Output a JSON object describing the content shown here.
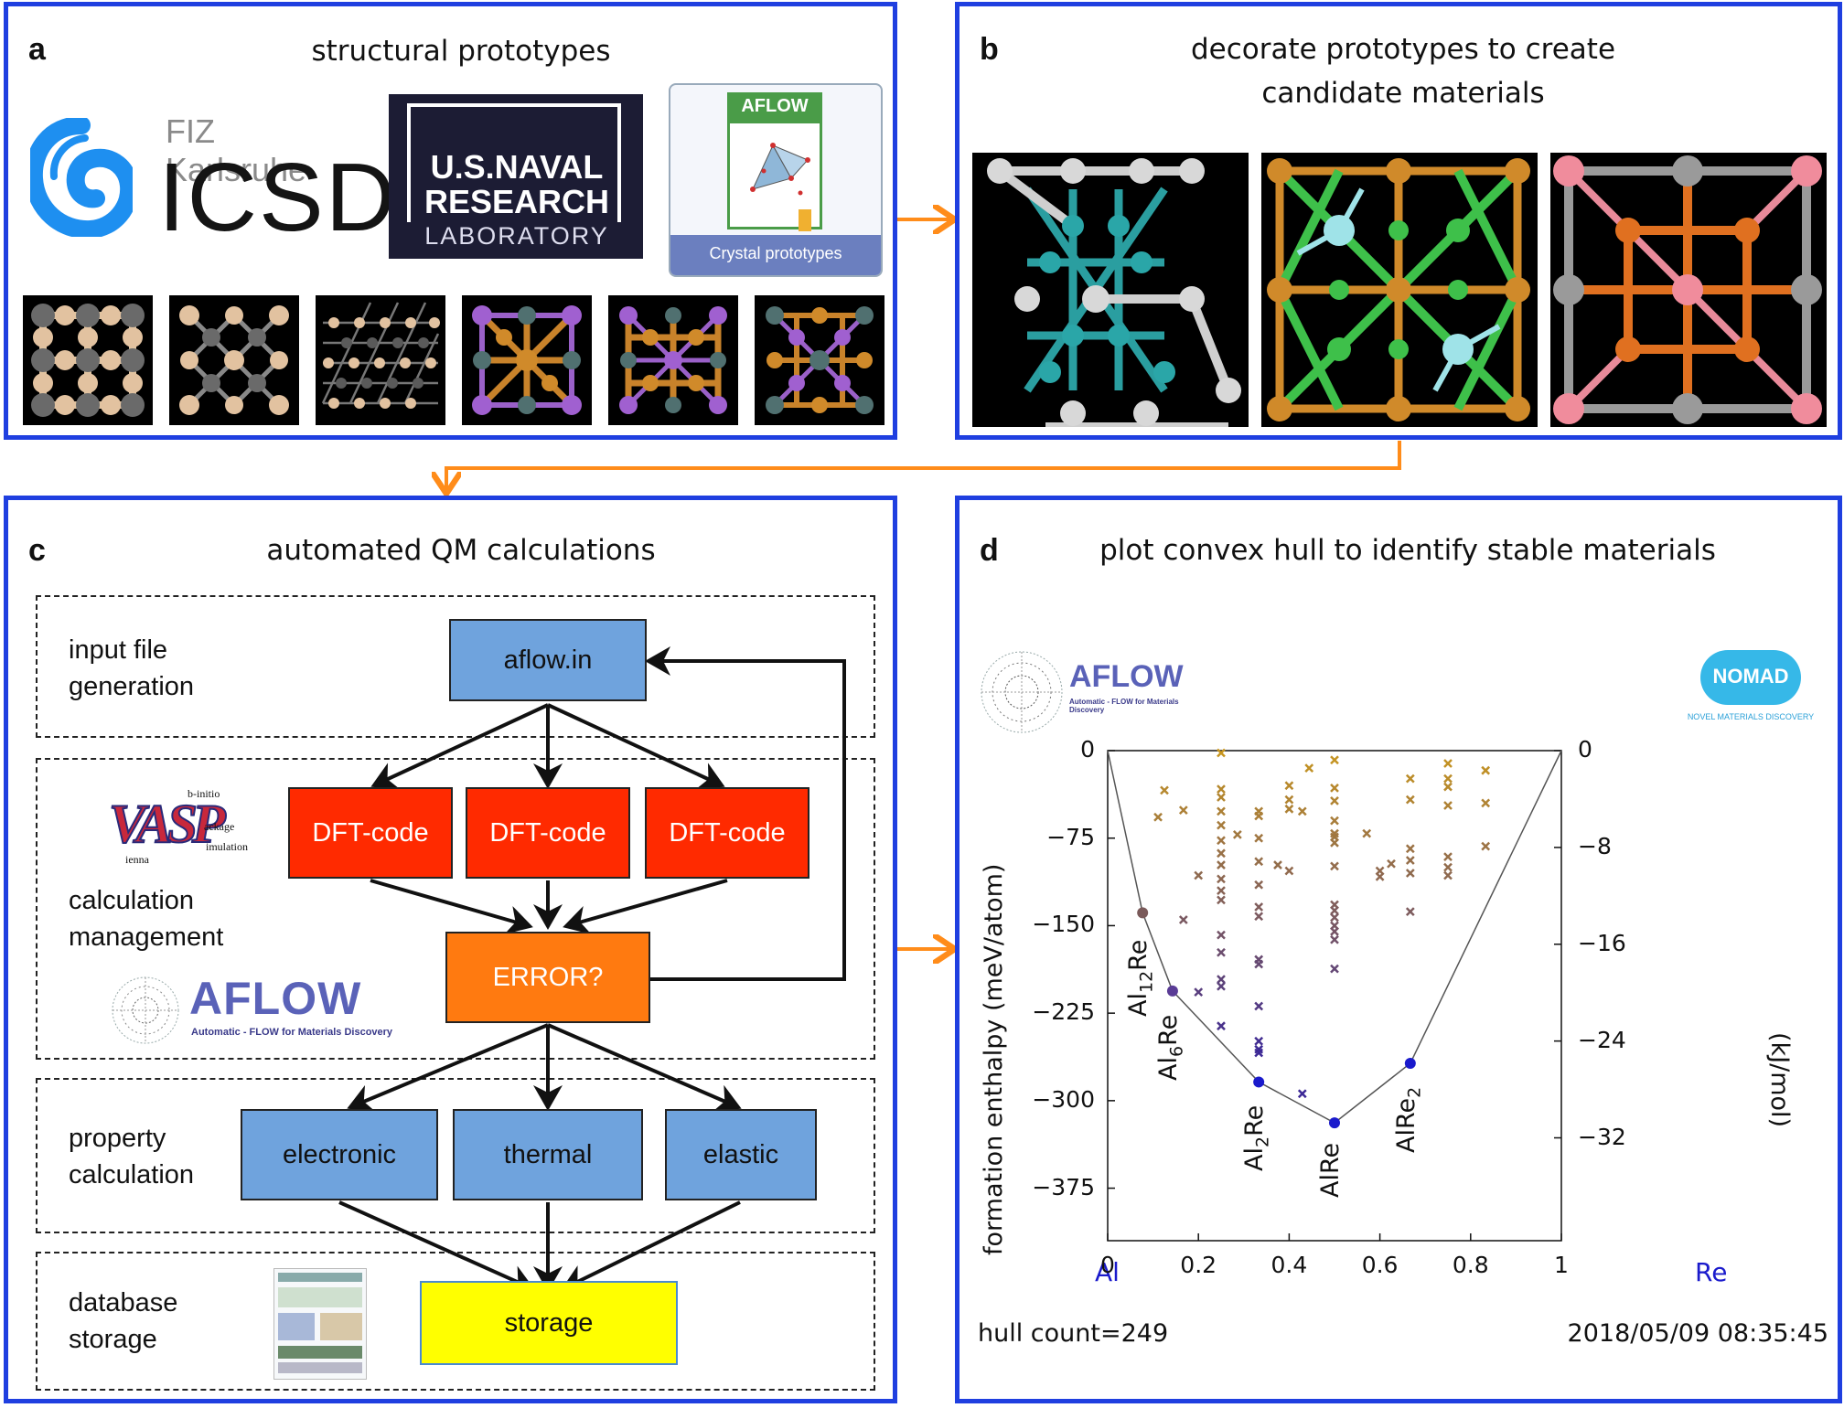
{
  "panel_a": {
    "letter": "a",
    "title": "structural prototypes",
    "logos": {
      "fiz": "FIZ Karlsruhe",
      "icsd": "ICSD",
      "nrl_line1": "U.S.NAVAL",
      "nrl_line2": "RESEARCH",
      "nrl_line3": "LABORATORY",
      "aflow_book_title": "AFLOW",
      "aflow_book_caption": "Crystal prototypes"
    }
  },
  "panel_b": {
    "letter": "b",
    "title_line1": "decorate prototypes to create",
    "title_line2": "candidate materials"
  },
  "panel_c": {
    "letter": "c",
    "title": "automated QM calculations",
    "stages": {
      "input_l1": "input file",
      "input_l2": "generation",
      "calc_l1": "calculation",
      "calc_l2": "management",
      "prop_l1": "property",
      "prop_l2": "calculation",
      "db_l1": "database",
      "db_l2": "storage"
    },
    "boxes": {
      "aflow_in": "aflow.in",
      "dft1": "DFT-code",
      "dft2": "DFT-code",
      "dft3": "DFT-code",
      "error": "ERROR?",
      "electronic": "electronic",
      "thermal": "thermal",
      "elastic": "elastic",
      "storage": "storage"
    },
    "vasp_logo": {
      "letters": "VASP",
      "l1": "b-initio",
      "l2": "ackage",
      "l3": "ienna",
      "l4": "imulation"
    },
    "aflow_logo": {
      "name": "AFLOW",
      "tagline": "Automatic - FLOW for Materials Discovery"
    }
  },
  "panel_d": {
    "letter": "d",
    "title": "plot convex hull to identify stable materials",
    "aflow_logo": {
      "name": "AFLOW",
      "tagline": "Automatic - FLOW for Materials Discovery"
    },
    "nomad_logo": {
      "name": "NOMAD",
      "tagline": "NOVEL MATERIALS DISCOVERY"
    },
    "footer_left": "hull count=249",
    "footer_right": "2018/05/09 08:35:45",
    "element_left": "Al",
    "element_right": "Re"
  },
  "colors": {
    "panel_border": "#1f3fe0",
    "arrow": "#ff8c1a",
    "hull_point": "#1a1acc",
    "gold": "#c8961e",
    "brown": "#8a5a3a",
    "purple": "#5a3c96"
  },
  "chart_data": {
    "type": "scatter",
    "ylabel": "formation enthalpy  (meV/atom)",
    "y2label": "(kJ/mol)",
    "xlim": [
      0,
      1
    ],
    "ylim": [
      -420,
      0
    ],
    "y2lim": [
      -40.5,
      0
    ],
    "x_ticks": [
      "0",
      "0.2",
      "0.4",
      "0.6",
      "0.8",
      "1"
    ],
    "y_ticks": [
      "0",
      "−75",
      "−150",
      "−225",
      "−300",
      "−375"
    ],
    "y2_ticks": [
      "0",
      "−8",
      "−16",
      "−24",
      "−32"
    ],
    "hull": {
      "points": [
        {
          "x": 0,
          "y": 0
        },
        {
          "x": 0.077,
          "y": -139,
          "label": "Al",
          "sub": "12",
          "suffix": "Re"
        },
        {
          "x": 0.143,
          "y": -206,
          "label": "Al",
          "sub": "6",
          "suffix": "Re"
        },
        {
          "x": 0.333,
          "y": -284,
          "label": "Al",
          "sub": "2",
          "suffix": "Re"
        },
        {
          "x": 0.5,
          "y": -319,
          "label": "AlRe",
          "sub": "",
          "suffix": ""
        },
        {
          "x": 0.667,
          "y": -268,
          "label": "AlRe",
          "sub": "2",
          "suffix": ""
        },
        {
          "x": 1,
          "y": 0
        }
      ]
    },
    "unstable": [
      {
        "x": 0.111,
        "y": -57
      },
      {
        "x": 0.125,
        "y": -34
      },
      {
        "x": 0.167,
        "y": -51
      },
      {
        "x": 0.167,
        "y": -145
      },
      {
        "x": 0.2,
        "y": -107
      },
      {
        "x": 0.2,
        "y": -207
      },
      {
        "x": 0.25,
        "y": -2
      },
      {
        "x": 0.25,
        "y": -33
      },
      {
        "x": 0.25,
        "y": -40
      },
      {
        "x": 0.25,
        "y": -52
      },
      {
        "x": 0.25,
        "y": -64
      },
      {
        "x": 0.25,
        "y": -77
      },
      {
        "x": 0.25,
        "y": -88
      },
      {
        "x": 0.25,
        "y": -98
      },
      {
        "x": 0.25,
        "y": -110
      },
      {
        "x": 0.25,
        "y": -120
      },
      {
        "x": 0.25,
        "y": -128
      },
      {
        "x": 0.25,
        "y": -158
      },
      {
        "x": 0.25,
        "y": -173
      },
      {
        "x": 0.25,
        "y": -196
      },
      {
        "x": 0.25,
        "y": -202
      },
      {
        "x": 0.25,
        "y": -236
      },
      {
        "x": 0.286,
        "y": -72
      },
      {
        "x": 0.333,
        "y": -52
      },
      {
        "x": 0.333,
        "y": -56
      },
      {
        "x": 0.333,
        "y": -75
      },
      {
        "x": 0.333,
        "y": -95
      },
      {
        "x": 0.333,
        "y": -115
      },
      {
        "x": 0.333,
        "y": -134
      },
      {
        "x": 0.333,
        "y": -142
      },
      {
        "x": 0.333,
        "y": -179
      },
      {
        "x": 0.333,
        "y": -183
      },
      {
        "x": 0.333,
        "y": -219
      },
      {
        "x": 0.333,
        "y": -249
      },
      {
        "x": 0.333,
        "y": -256
      },
      {
        "x": 0.333,
        "y": -259
      },
      {
        "x": 0.375,
        "y": -98
      },
      {
        "x": 0.4,
        "y": -30
      },
      {
        "x": 0.4,
        "y": -42
      },
      {
        "x": 0.4,
        "y": -50
      },
      {
        "x": 0.4,
        "y": -103
      },
      {
        "x": 0.429,
        "y": -52
      },
      {
        "x": 0.429,
        "y": -294
      },
      {
        "x": 0.444,
        "y": -15
      },
      {
        "x": 0.5,
        "y": -8
      },
      {
        "x": 0.5,
        "y": -32
      },
      {
        "x": 0.5,
        "y": -43
      },
      {
        "x": 0.5,
        "y": -60
      },
      {
        "x": 0.5,
        "y": -71
      },
      {
        "x": 0.5,
        "y": -74
      },
      {
        "x": 0.5,
        "y": -79
      },
      {
        "x": 0.5,
        "y": -99
      },
      {
        "x": 0.5,
        "y": -132
      },
      {
        "x": 0.5,
        "y": -137
      },
      {
        "x": 0.5,
        "y": -143
      },
      {
        "x": 0.5,
        "y": -150
      },
      {
        "x": 0.5,
        "y": -155
      },
      {
        "x": 0.5,
        "y": -162
      },
      {
        "x": 0.5,
        "y": -187
      },
      {
        "x": 0.571,
        "y": -71
      },
      {
        "x": 0.6,
        "y": -103
      },
      {
        "x": 0.6,
        "y": -108
      },
      {
        "x": 0.625,
        "y": -97
      },
      {
        "x": 0.667,
        "y": -24
      },
      {
        "x": 0.667,
        "y": -42
      },
      {
        "x": 0.667,
        "y": -84
      },
      {
        "x": 0.667,
        "y": -94
      },
      {
        "x": 0.667,
        "y": -105
      },
      {
        "x": 0.667,
        "y": -138
      },
      {
        "x": 0.75,
        "y": -11
      },
      {
        "x": 0.75,
        "y": -24
      },
      {
        "x": 0.75,
        "y": -31
      },
      {
        "x": 0.75,
        "y": -47
      },
      {
        "x": 0.75,
        "y": -91
      },
      {
        "x": 0.75,
        "y": -100
      },
      {
        "x": 0.75,
        "y": -107
      },
      {
        "x": 0.833,
        "y": -17
      },
      {
        "x": 0.833,
        "y": -45
      },
      {
        "x": 0.833,
        "y": -82
      }
    ]
  }
}
